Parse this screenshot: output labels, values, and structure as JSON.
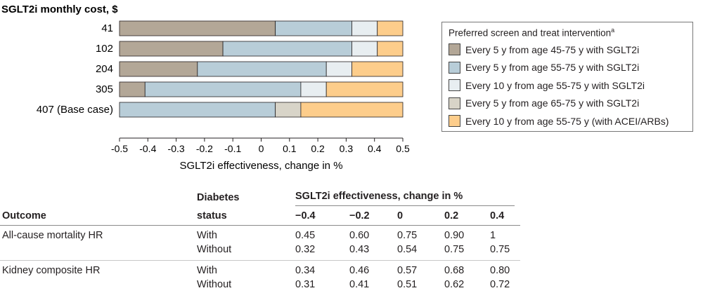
{
  "chart_data": {
    "type": "bar",
    "orientation": "horizontal",
    "stacked": true,
    "y_title": "SGLT2i monthly cost, $",
    "xlabel": "SGLT2i effectiveness, change in %",
    "xlim": [
      -0.5,
      0.5
    ],
    "xticks": [
      "-0.5",
      "-0.4",
      "-0.3",
      "-0.2",
      "-0.1",
      "0",
      "0.1",
      "0.2",
      "0.3",
      "0.4",
      "0.5"
    ],
    "xtick_values": [
      -0.5,
      -0.4,
      -0.3,
      -0.2,
      -0.1,
      0,
      0.1,
      0.2,
      0.3,
      0.4,
      0.5
    ],
    "categories": [
      "41",
      "102",
      "204",
      "305",
      "407 (Base case)"
    ],
    "segments": [
      [
        {
          "s": 0,
          "from": -0.5,
          "to": 0.05
        },
        {
          "s": 1,
          "from": 0.05,
          "to": 0.32
        },
        {
          "s": 2,
          "from": 0.32,
          "to": 0.41
        },
        {
          "s": 4,
          "from": 0.41,
          "to": 0.5
        }
      ],
      [
        {
          "s": 0,
          "from": -0.5,
          "to": -0.135
        },
        {
          "s": 1,
          "from": -0.135,
          "to": 0.32
        },
        {
          "s": 2,
          "from": 0.32,
          "to": 0.41
        },
        {
          "s": 4,
          "from": 0.41,
          "to": 0.5
        }
      ],
      [
        {
          "s": 0,
          "from": -0.5,
          "to": -0.225
        },
        {
          "s": 1,
          "from": -0.225,
          "to": 0.23
        },
        {
          "s": 2,
          "from": 0.23,
          "to": 0.32
        },
        {
          "s": 4,
          "from": 0.32,
          "to": 0.5
        }
      ],
      [
        {
          "s": 0,
          "from": -0.5,
          "to": -0.41
        },
        {
          "s": 1,
          "from": -0.41,
          "to": 0.14
        },
        {
          "s": 2,
          "from": 0.14,
          "to": 0.23
        },
        {
          "s": 4,
          "from": 0.23,
          "to": 0.5
        }
      ],
      [
        {
          "s": 1,
          "from": -0.5,
          "to": 0.05
        },
        {
          "s": 3,
          "from": 0.05,
          "to": 0.14
        },
        {
          "s": 4,
          "from": 0.14,
          "to": 0.5
        }
      ]
    ],
    "legend": {
      "title": "Preferred screen and treat intervention",
      "title_superscript": "a",
      "position": "right",
      "entries": [
        {
          "label": "Every 5 y from age 45-75 y with SGLT2i",
          "color": "#b3a797"
        },
        {
          "label": "Every 5 y from age 55-75 y with SGLT2i",
          "color": "#b8cdd8"
        },
        {
          "label": "Every 10 y from age 55-75 y with SGLT2i",
          "color": "#e8eef1"
        },
        {
          "label": "Every 5 y from age 65-75 y with SGLT2i",
          "color": "#d8d4c8"
        },
        {
          "label": "Every 10 y from age 55-75 y (with ACEI/ARBs)",
          "color": "#fdcd8b"
        }
      ]
    }
  },
  "table": {
    "outcome_header": "Outcome",
    "status_header_line1": "Diabetes",
    "status_header_line2": "status",
    "effect_header": "SGLT2i effectiveness, change in %",
    "columns": [
      "−0.4",
      "−0.2",
      "0",
      "0.2",
      "0.4"
    ],
    "rows": [
      {
        "outcome": "All-cause mortality HR",
        "status": "With",
        "values": [
          "0.45",
          "0.60",
          "0.75",
          "0.90",
          "1"
        ]
      },
      {
        "outcome": "",
        "status": "Without",
        "values": [
          "0.32",
          "0.43",
          "0.54",
          "0.75",
          "0.75"
        ]
      },
      {
        "outcome": "Kidney composite HR",
        "status": "With",
        "values": [
          "0.34",
          "0.46",
          "0.57",
          "0.68",
          "0.80"
        ]
      },
      {
        "outcome": "",
        "status": "Without",
        "values": [
          "0.31",
          "0.41",
          "0.51",
          "0.62",
          "0.72"
        ]
      }
    ]
  }
}
